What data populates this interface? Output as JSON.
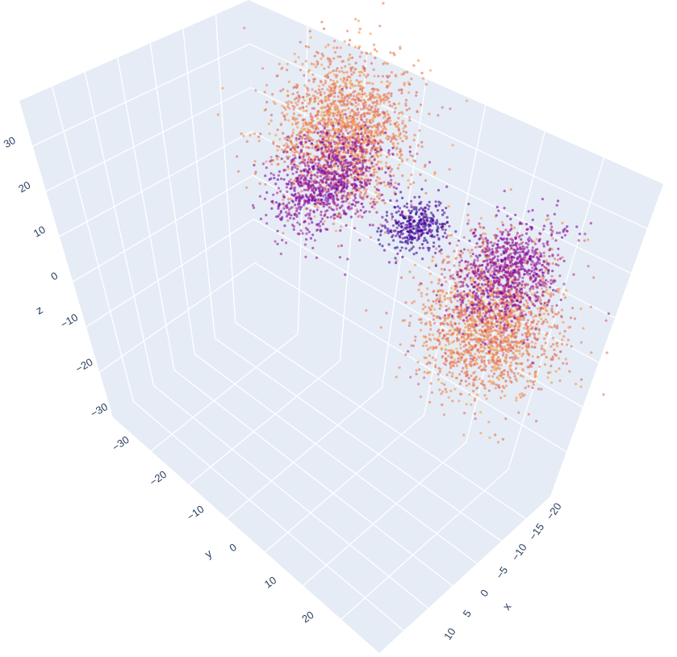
{
  "chart_data": {
    "type": "scatter3d",
    "title": "",
    "axes": {
      "x": {
        "title": "x",
        "ticks": [
          "−20",
          "−15",
          "−10",
          "−5",
          "0",
          "5",
          "10"
        ],
        "range": [
          -20,
          10
        ]
      },
      "y": {
        "title": "y",
        "ticks": [
          "−30",
          "−20",
          "−10",
          "0",
          "10",
          "20"
        ],
        "range": [
          -30,
          25
        ]
      },
      "z": {
        "title": "z",
        "ticks": [
          "30",
          "20",
          "10",
          "0",
          "−10",
          "−20",
          "−30"
        ],
        "range": [
          -35,
          35
        ]
      }
    },
    "background_color": "#e5ecf6",
    "grid_color": "#ffffff",
    "colorscale": [
      "#0d0887",
      "#7e03a8",
      "#cc4778",
      "#f89540",
      "#f0f921"
    ],
    "marker_opacity": 0.6,
    "grid": true,
    "clusters": [
      {
        "name": "",
        "center": [
          0,
          -15,
          8
        ],
        "spread": [
          6,
          8,
          12
        ],
        "color_level": 0.68,
        "points": 1800
      },
      {
        "name": "",
        "center": [
          0,
          15,
          -8
        ],
        "spread": [
          6,
          8,
          12
        ],
        "color_level": 0.68,
        "points": 1800
      },
      {
        "name": "",
        "center": [
          -8,
          -5,
          15
        ],
        "spread": [
          5,
          5,
          8
        ],
        "color_level": 0.3,
        "points": 900
      },
      {
        "name": "",
        "center": [
          8,
          5,
          -15
        ],
        "spread": [
          5,
          5,
          8
        ],
        "color_level": 0.32,
        "points": 900
      },
      {
        "name": "",
        "center": [
          0,
          0,
          0
        ],
        "spread": [
          3,
          3,
          4
        ],
        "color_level": 0.12,
        "points": 350
      }
    ]
  }
}
